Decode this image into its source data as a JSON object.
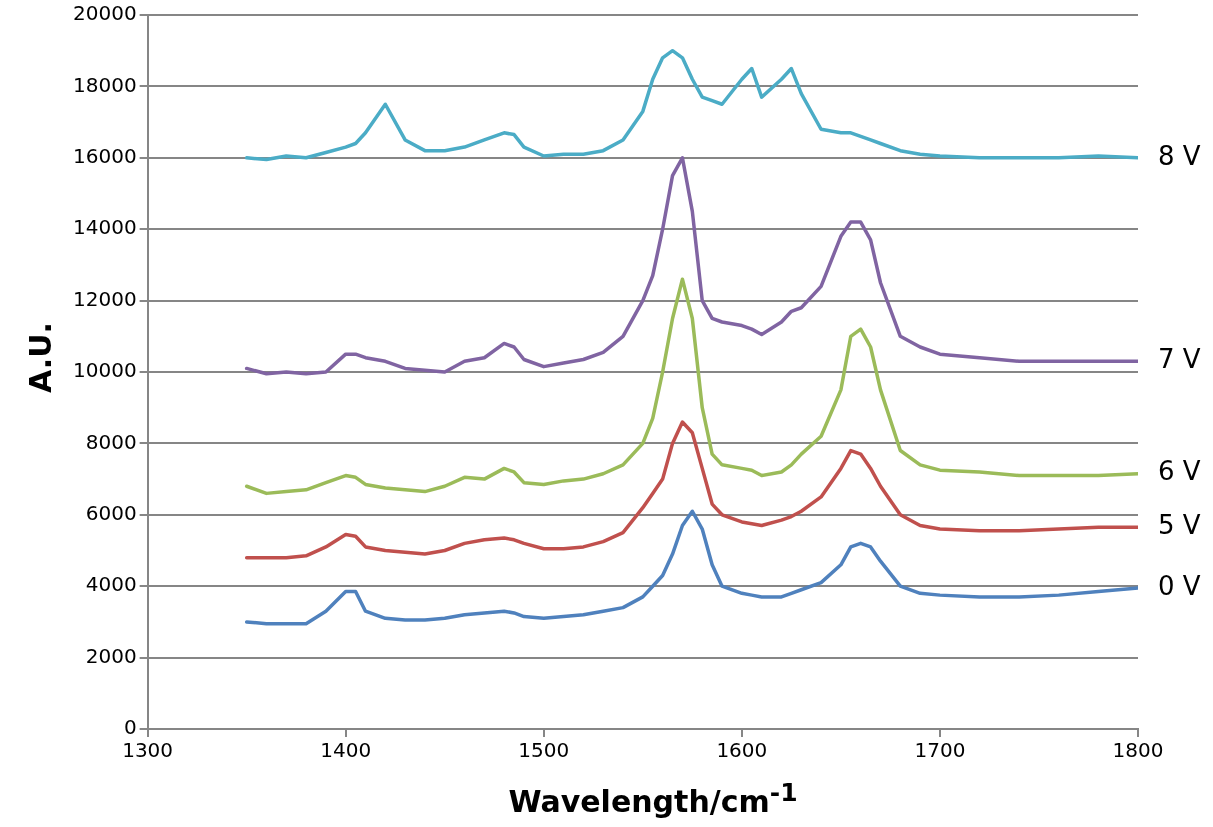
{
  "chart_data": {
    "type": "line",
    "xlabel": "Wavelength/cm$^{-1}$",
    "ylabel": "A.U.",
    "x": [
      1350,
      1360,
      1370,
      1380,
      1390,
      1400,
      1405,
      1410,
      1420,
      1430,
      1440,
      1450,
      1460,
      1470,
      1480,
      1485,
      1490,
      1500,
      1510,
      1520,
      1530,
      1540,
      1550,
      1555,
      1560,
      1565,
      1570,
      1575,
      1580,
      1585,
      1590,
      1600,
      1605,
      1610,
      1620,
      1625,
      1630,
      1640,
      1650,
      1655,
      1660,
      1665,
      1670,
      1680,
      1690,
      1700,
      1720,
      1740,
      1760,
      1780,
      1800
    ],
    "series": [
      {
        "name": "0 V",
        "color": "#4f81bd",
        "values": [
          3000,
          2950,
          2950,
          2950,
          3300,
          3850,
          3850,
          3300,
          3100,
          3050,
          3050,
          3100,
          3200,
          3250,
          3300,
          3250,
          3150,
          3100,
          3150,
          3200,
          3300,
          3400,
          3700,
          4000,
          4300,
          4900,
          5700,
          6100,
          5600,
          4600,
          4000,
          3800,
          3750,
          3700,
          3700,
          3800,
          3900,
          4100,
          4600,
          5100,
          5200,
          5100,
          4700,
          4000,
          3800,
          3750,
          3700,
          3700,
          3750,
          3850,
          3950
        ]
      },
      {
        "name": "5 V",
        "color": "#c0504d",
        "values": [
          4800,
          4800,
          4800,
          4850,
          5100,
          5450,
          5400,
          5100,
          5000,
          4950,
          4900,
          5000,
          5200,
          5300,
          5350,
          5300,
          5200,
          5050,
          5050,
          5100,
          5250,
          5500,
          6200,
          6600,
          7000,
          8000,
          8600,
          8300,
          7300,
          6300,
          6000,
          5800,
          5750,
          5700,
          5850,
          5950,
          6100,
          6500,
          7300,
          7800,
          7700,
          7300,
          6800,
          6000,
          5700,
          5600,
          5550,
          5550,
          5600,
          5650,
          5650
        ]
      },
      {
        "name": "6 V",
        "color": "#9bbb59",
        "values": [
          6800,
          6600,
          6650,
          6700,
          6900,
          7100,
          7050,
          6850,
          6750,
          6700,
          6650,
          6800,
          7050,
          7000,
          7300,
          7200,
          6900,
          6850,
          6950,
          7000,
          7150,
          7400,
          8000,
          8700,
          10000,
          11500,
          12600,
          11500,
          9000,
          7700,
          7400,
          7300,
          7250,
          7100,
          7200,
          7400,
          7700,
          8200,
          9500,
          11000,
          11200,
          10700,
          9500,
          7800,
          7400,
          7250,
          7200,
          7100,
          7100,
          7100,
          7150
        ]
      },
      {
        "name": "7 V",
        "color": "#8064a2",
        "values": [
          10100,
          9950,
          10000,
          9950,
          10000,
          10500,
          10500,
          10400,
          10300,
          10100,
          10050,
          10000,
          10300,
          10400,
          10800,
          10700,
          10350,
          10150,
          10250,
          10350,
          10550,
          11000,
          12000,
          12700,
          14000,
          15500,
          16000,
          14500,
          12000,
          11500,
          11400,
          11300,
          11200,
          11050,
          11400,
          11700,
          11800,
          12400,
          13800,
          14200,
          14200,
          13700,
          12500,
          11000,
          10700,
          10500,
          10400,
          10300,
          10300,
          10300,
          10300
        ]
      },
      {
        "name": "8 V",
        "color": "#4bacc6",
        "values": [
          16000,
          15950,
          16050,
          16000,
          16150,
          16300,
          16400,
          16700,
          17500,
          16500,
          16200,
          16200,
          16300,
          16500,
          16700,
          16650,
          16300,
          16050,
          16100,
          16100,
          16200,
          16500,
          17300,
          18200,
          18800,
          19000,
          18800,
          18200,
          17700,
          17600,
          17500,
          18200,
          18500,
          17700,
          18200,
          18500,
          17800,
          16800,
          16700,
          16700,
          16600,
          16500,
          16400,
          16200,
          16100,
          16050,
          16000,
          16000,
          16000,
          16050,
          16000
        ]
      }
    ],
    "xlim": [
      1300,
      1800
    ],
    "xticks": [
      1300,
      1400,
      1500,
      1600,
      1700,
      1800
    ],
    "ylim": [
      0,
      20000
    ],
    "yticks": [
      0,
      2000,
      4000,
      6000,
      8000,
      10000,
      12000,
      14000,
      16000,
      18000,
      20000
    ],
    "grid": "y",
    "legend": false,
    "marker": "none",
    "line_style": "solid"
  }
}
